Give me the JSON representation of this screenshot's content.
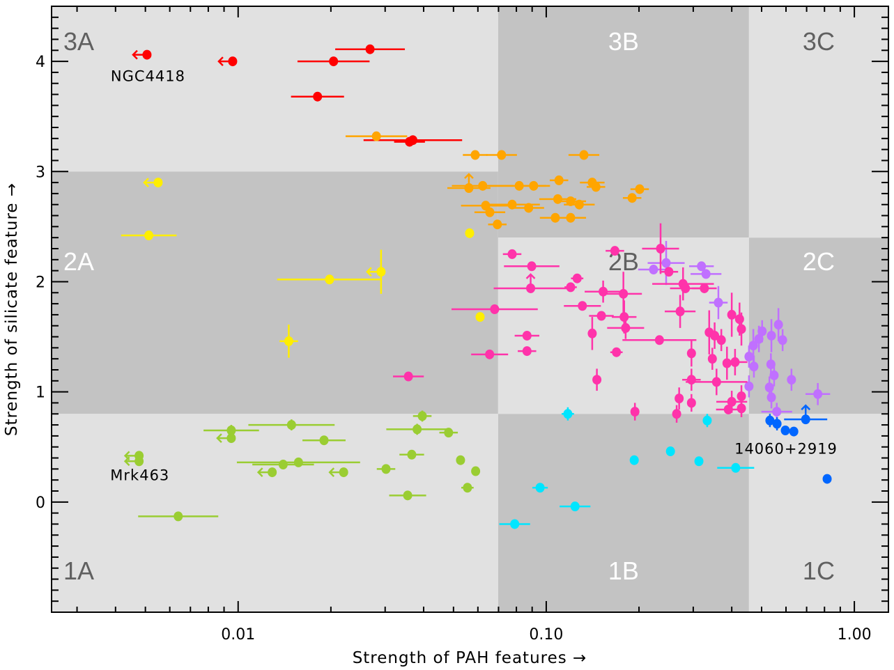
{
  "chart_data": {
    "type": "scatter",
    "xlabel": "Strength of PAH features →",
    "ylabel": "Strength of silicate feature →",
    "xscale": "log",
    "xlim": [
      0.00248,
      1.29
    ],
    "ylim": [
      -1.0,
      4.5
    ],
    "xticks": [
      {
        "value": 0.01,
        "label": "0.01"
      },
      {
        "value": 0.1,
        "label": "0.10"
      },
      {
        "value": 1.0,
        "label": "1.00"
      }
    ],
    "yticks": [
      {
        "value": 0,
        "label": "0"
      },
      {
        "value": 1,
        "label": "1"
      },
      {
        "value": 2,
        "label": "2"
      },
      {
        "value": 3,
        "label": "3"
      },
      {
        "value": 4,
        "label": "4"
      }
    ],
    "colors": {
      "bg_light": "#e1e1e1",
      "bg_dark": "#c3c3c3",
      "label_dark": "#606060",
      "label_light": "#ffffff"
    },
    "regions": [
      {
        "label": "3A",
        "x": [
          0.00248,
          0.0698
        ],
        "y": [
          3.0,
          4.5
        ],
        "shade": "light"
      },
      {
        "label": "3B",
        "x": [
          0.0698,
          0.455
        ],
        "y": [
          2.4,
          4.5
        ],
        "shade": "dark"
      },
      {
        "label": "3C",
        "x": [
          0.455,
          1.29
        ],
        "y": [
          2.4,
          4.5
        ],
        "shade": "light"
      },
      {
        "label": "2A",
        "x": [
          0.00248,
          0.0698
        ],
        "y": [
          0.8,
          3.0
        ],
        "shade": "dark"
      },
      {
        "label": "2B",
        "x": [
          0.0698,
          0.455
        ],
        "y": [
          0.8,
          2.4
        ],
        "shade": "light"
      },
      {
        "label": "2C",
        "x": [
          0.455,
          1.29
        ],
        "y": [
          0.8,
          2.4
        ],
        "shade": "dark"
      },
      {
        "label": "1A",
        "x": [
          0.00248,
          0.0698
        ],
        "y": [
          -1.0,
          0.8
        ],
        "shade": "light"
      },
      {
        "label": "1B",
        "x": [
          0.0698,
          0.455
        ],
        "y": [
          -1.0,
          0.8
        ],
        "shade": "dark"
      },
      {
        "label": "1C",
        "x": [
          0.455,
          1.29
        ],
        "y": [
          -1.0,
          0.8
        ],
        "shade": "light"
      }
    ],
    "annotations": [
      {
        "text": "NGC4418",
        "x": 0.0051,
        "y": 3.87
      },
      {
        "text": "Mrk463",
        "x": 0.0048,
        "y": 0.25
      },
      {
        "text": "14060+2919",
        "x": 0.6,
        "y": 0.49
      }
    ],
    "series": [
      {
        "name": "red",
        "color": "#ff0000",
        "points": [
          {
            "x": 0.00506,
            "y": 4.06,
            "lim": "left"
          },
          {
            "x": 0.0096,
            "y": 4.0,
            "lim": "left"
          },
          {
            "x": 0.0268,
            "y": 4.11,
            "xe": 0.113
          },
          {
            "x": 0.0204,
            "y": 4.0,
            "xe": 0.117
          },
          {
            "x": 0.0181,
            "y": 3.68,
            "xe": 0.086
          },
          {
            "x": 0.036,
            "y": 3.27,
            "xe": 0.05
          },
          {
            "x": 0.0369,
            "y": 3.285,
            "xe": 0.16
          }
        ]
      },
      {
        "name": "orange",
        "color": "#ffa500",
        "points": [
          {
            "x": 0.0281,
            "y": 3.32,
            "xe": 0.1
          },
          {
            "x": 0.0588,
            "y": 3.15,
            "xe": 0.04
          },
          {
            "x": 0.0716,
            "y": 3.15,
            "xe": 0.05
          },
          {
            "x": 0.1325,
            "y": 3.15,
            "xe": 0.05
          },
          {
            "x": 0.0561,
            "y": 2.85,
            "xe": 0.07,
            "lim": "up"
          },
          {
            "x": 0.0622,
            "y": 2.87,
            "xe": 0.1
          },
          {
            "x": 0.0817,
            "y": 2.87,
            "xe": 0.1
          },
          {
            "x": 0.091,
            "y": 2.87,
            "xe": 0.04
          },
          {
            "x": 0.11,
            "y": 2.92,
            "xe": 0.03
          },
          {
            "x": 0.141,
            "y": 2.9,
            "xe": 0.04
          },
          {
            "x": 0.145,
            "y": 2.86,
            "xe": 0.03
          },
          {
            "x": 0.201,
            "y": 2.84,
            "xe": 0.03
          },
          {
            "x": 0.19,
            "y": 2.76,
            "xe": 0.03
          },
          {
            "x": 0.0636,
            "y": 2.69,
            "xe": 0.08
          },
          {
            "x": 0.0656,
            "y": 2.63,
            "xe": 0.05
          },
          {
            "x": 0.0775,
            "y": 2.7,
            "xe": 0.09
          },
          {
            "x": 0.0877,
            "y": 2.67,
            "xe": 0.05
          },
          {
            "x": 0.109,
            "y": 2.75,
            "xe": 0.06
          },
          {
            "x": 0.12,
            "y": 2.73,
            "xe": 0.05
          },
          {
            "x": 0.128,
            "y": 2.7,
            "xe": 0.05
          },
          {
            "x": 0.0694,
            "y": 2.52,
            "xe": 0.03
          },
          {
            "x": 0.107,
            "y": 2.58,
            "xe": 0.05
          },
          {
            "x": 0.12,
            "y": 2.58,
            "xe": 0.05
          }
        ]
      },
      {
        "name": "yellow",
        "color": "#ffee00",
        "points": [
          {
            "x": 0.0055,
            "y": 2.9,
            "lim": "left"
          },
          {
            "x": 0.00513,
            "y": 2.42,
            "xe": 0.09
          },
          {
            "x": 0.0198,
            "y": 2.02,
            "xe": 0.17
          },
          {
            "x": 0.0291,
            "y": 2.09,
            "lim": "left",
            "ye": 0.2
          },
          {
            "x": 0.0146,
            "y": 1.46,
            "xe": 0.03,
            "ye": 0.15
          },
          {
            "x": 0.0564,
            "y": 2.44,
            "xe": 0.01
          },
          {
            "x": 0.061,
            "y": 1.68
          }
        ]
      },
      {
        "name": "yellowgreen",
        "color": "#9acd32",
        "points": [
          {
            "x": 0.00477,
            "y": 0.42,
            "lim": "left"
          },
          {
            "x": 0.00477,
            "y": 0.37,
            "lim": "left"
          },
          {
            "x": 0.0095,
            "y": 0.65,
            "xe": 0.09,
            "ye": 0.05
          },
          {
            "x": 0.0095,
            "y": 0.58,
            "lim": "left"
          },
          {
            "x": 0.0149,
            "y": 0.7,
            "xe": 0.14,
            "ye": 0.05
          },
          {
            "x": 0.019,
            "y": 0.56,
            "xe": 0.07
          },
          {
            "x": 0.0396,
            "y": 0.78,
            "xe": 0.03,
            "ye": 0.05
          },
          {
            "x": 0.0381,
            "y": 0.66,
            "xe": 0.1,
            "ye": 0.05
          },
          {
            "x": 0.0482,
            "y": 0.63,
            "xe": 0.03
          },
          {
            "x": 0.0366,
            "y": 0.43,
            "xe": 0.04
          },
          {
            "x": 0.0527,
            "y": 0.38
          },
          {
            "x": 0.0157,
            "y": 0.36,
            "xe": 0.2
          },
          {
            "x": 0.014,
            "y": 0.34,
            "xe": 0.1
          },
          {
            "x": 0.0129,
            "y": 0.27,
            "lim": "left"
          },
          {
            "x": 0.022,
            "y": 0.27,
            "lim": "left"
          },
          {
            "x": 0.0302,
            "y": 0.3,
            "xe": 0.03
          },
          {
            "x": 0.059,
            "y": 0.28
          },
          {
            "x": 0.0555,
            "y": 0.13,
            "xe": 0.02
          },
          {
            "x": 0.0355,
            "y": 0.06,
            "xe": 0.06
          },
          {
            "x": 0.00639,
            "y": -0.13,
            "xe": 0.13
          }
        ]
      },
      {
        "name": "cyan",
        "color": "#00e5ff",
        "points": [
          {
            "x": 0.1175,
            "y": 0.8,
            "xe": 0.02,
            "ye": 0.06
          },
          {
            "x": 0.333,
            "y": 0.74,
            "ye": 0.06
          },
          {
            "x": 0.193,
            "y": 0.38
          },
          {
            "x": 0.253,
            "y": 0.46
          },
          {
            "x": 0.313,
            "y": 0.37
          },
          {
            "x": 0.412,
            "y": 0.31,
            "xe": 0.06
          },
          {
            "x": 0.0955,
            "y": 0.13,
            "xe": 0.025
          },
          {
            "x": 0.124,
            "y": -0.04,
            "xe": 0.05
          },
          {
            "x": 0.079,
            "y": -0.2,
            "xe": 0.05
          }
        ]
      },
      {
        "name": "purple",
        "color": "#c070ff",
        "points": [
          {
            "x": 0.223,
            "y": 2.11,
            "xe": 0.05
          },
          {
            "x": 0.245,
            "y": 2.17,
            "xe": 0.06,
            "ye": 0.2
          },
          {
            "x": 0.319,
            "y": 2.14,
            "xe": 0.04
          },
          {
            "x": 0.33,
            "y": 2.07,
            "xe": 0.05
          },
          {
            "x": 0.362,
            "y": 1.81,
            "xe": 0.03,
            "ye": 0.15
          },
          {
            "x": 0.502,
            "y": 1.55,
            "ye": 0.1
          },
          {
            "x": 0.538,
            "y": 1.51,
            "ye": 0.15
          },
          {
            "x": 0.567,
            "y": 1.61,
            "ye": 0.15
          },
          {
            "x": 0.585,
            "y": 1.47,
            "ye": 0.1
          },
          {
            "x": 0.47,
            "y": 1.42,
            "ye": 0.15
          },
          {
            "x": 0.455,
            "y": 1.32,
            "ye": 0.1
          },
          {
            "x": 0.472,
            "y": 1.23,
            "ye": 0.1
          },
          {
            "x": 0.536,
            "y": 1.25,
            "ye": 0.1
          },
          {
            "x": 0.549,
            "y": 1.15,
            "ye": 0.1
          },
          {
            "x": 0.625,
            "y": 1.11,
            "ye": 0.1
          },
          {
            "x": 0.455,
            "y": 1.05,
            "ye": 0.1
          },
          {
            "x": 0.53,
            "y": 1.04,
            "ye": 0.1
          },
          {
            "x": 0.538,
            "y": 0.95,
            "ye": 0.1
          },
          {
            "x": 0.56,
            "y": 0.82,
            "xe": 0.05,
            "ye": 0.08
          },
          {
            "x": 0.761,
            "y": 0.98,
            "xe": 0.04,
            "ye": 0.1
          },
          {
            "x": 0.49,
            "y": 1.48,
            "ye": 0.12
          }
        ]
      },
      {
        "name": "pink",
        "color": "#ff33aa",
        "points": [
          {
            "x": 0.0775,
            "y": 2.25,
            "xe": 0.03
          },
          {
            "x": 0.0897,
            "y": 2.14,
            "xe": 0.09
          },
          {
            "x": 0.089,
            "y": 1.94,
            "xe": 0.12,
            "lim": "up"
          },
          {
            "x": 0.068,
            "y": 1.75,
            "xe": 0.14
          },
          {
            "x": 0.0655,
            "y": 1.34,
            "xe": 0.06
          },
          {
            "x": 0.0866,
            "y": 1.51,
            "xe": 0.04
          },
          {
            "x": 0.0866,
            "y": 1.37,
            "xe": 0.03
          },
          {
            "x": 0.0357,
            "y": 1.14,
            "xe": 0.05
          },
          {
            "x": 0.126,
            "y": 2.03,
            "xe": 0.02
          },
          {
            "x": 0.12,
            "y": 1.95,
            "xe": 0.02
          },
          {
            "x": 0.131,
            "y": 1.78,
            "xe": 0.06
          },
          {
            "x": 0.153,
            "y": 1.91,
            "xe": 0.06,
            "ye": 0.1
          },
          {
            "x": 0.178,
            "y": 1.89,
            "xe": 0.06,
            "ye": 0.2
          },
          {
            "x": 0.167,
            "y": 2.28,
            "xe": 0.03
          },
          {
            "x": 0.151,
            "y": 1.69,
            "xe": 0.04
          },
          {
            "x": 0.179,
            "y": 1.68,
            "xe": 0.04,
            "ye": 0.15
          },
          {
            "x": 0.181,
            "y": 1.58,
            "xe": 0.06,
            "ye": 0.1
          },
          {
            "x": 0.141,
            "y": 1.53,
            "ye": 0.15
          },
          {
            "x": 0.169,
            "y": 1.36,
            "xe": 0.02
          },
          {
            "x": 0.146,
            "y": 1.11,
            "ye": 0.1
          },
          {
            "x": 0.235,
            "y": 2.3,
            "xe": 0.06,
            "ye": 0.23
          },
          {
            "x": 0.25,
            "y": 2.09,
            "xe": 0.03
          },
          {
            "x": 0.278,
            "y": 1.98,
            "xe": 0.1,
            "ye": 0.15
          },
          {
            "x": 0.283,
            "y": 1.94,
            "xe": 0.05
          },
          {
            "x": 0.326,
            "y": 1.94,
            "xe": 0.04
          },
          {
            "x": 0.272,
            "y": 1.73,
            "xe": 0.05,
            "ye": 0.15
          },
          {
            "x": 0.233,
            "y": 1.47,
            "xe": 0.12
          },
          {
            "x": 0.338,
            "y": 1.54,
            "ye": 0.2
          },
          {
            "x": 0.352,
            "y": 1.51,
            "ye": 0.12
          },
          {
            "x": 0.37,
            "y": 1.47,
            "ye": 0.1
          },
          {
            "x": 0.296,
            "y": 1.35,
            "ye": 0.12
          },
          {
            "x": 0.346,
            "y": 1.3,
            "ye": 0.1
          },
          {
            "x": 0.386,
            "y": 1.26,
            "ye": 0.15
          },
          {
            "x": 0.41,
            "y": 1.27,
            "xe": 0.04,
            "ye": 0.12
          },
          {
            "x": 0.4,
            "y": 1.7,
            "ye": 0.2
          },
          {
            "x": 0.424,
            "y": 1.66,
            "ye": 0.15
          },
          {
            "x": 0.43,
            "y": 1.57,
            "ye": 0.15
          },
          {
            "x": 0.296,
            "y": 1.11,
            "xe": 0.03,
            "ye": 0.1
          },
          {
            "x": 0.357,
            "y": 1.09,
            "xe": 0.1,
            "ye": 0.12
          },
          {
            "x": 0.27,
            "y": 0.94,
            "ye": 0.1
          },
          {
            "x": 0.296,
            "y": 0.9,
            "ye": 0.08
          },
          {
            "x": 0.265,
            "y": 0.8,
            "ye": 0.08
          },
          {
            "x": 0.4,
            "y": 0.91,
            "xe": 0.05,
            "ye": 0.1
          },
          {
            "x": 0.39,
            "y": 0.84,
            "xe": 0.04
          },
          {
            "x": 0.43,
            "y": 0.96,
            "ye": 0.1
          },
          {
            "x": 0.43,
            "y": 0.85,
            "ye": 0.08
          },
          {
            "x": 0.194,
            "y": 0.82,
            "ye": 0.08
          }
        ]
      },
      {
        "name": "blue",
        "color": "#0066ff",
        "points": [
          {
            "x": 0.532,
            "y": 0.74,
            "ye": 0.06
          },
          {
            "x": 0.561,
            "y": 0.71,
            "ye": 0.06
          },
          {
            "x": 0.597,
            "y": 0.65
          },
          {
            "x": 0.636,
            "y": 0.64
          },
          {
            "x": 0.695,
            "y": 0.75,
            "xe": 0.07,
            "lim": "up"
          },
          {
            "x": 0.816,
            "y": 0.21
          }
        ]
      }
    ]
  }
}
